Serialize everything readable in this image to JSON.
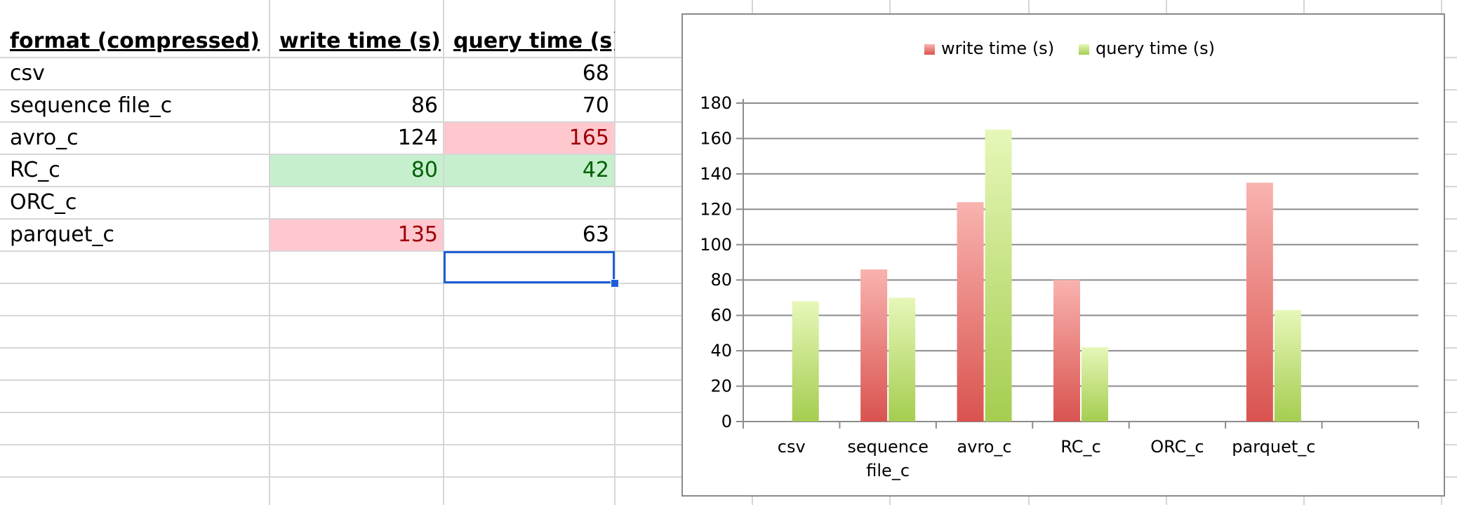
{
  "table": {
    "headers": [
      "format (compressed)",
      "write time (s)",
      "query time (s)"
    ],
    "rows": [
      {
        "format": "csv",
        "write": "",
        "query": "68"
      },
      {
        "format": "sequence file_c",
        "write": "86",
        "query": "70"
      },
      {
        "format": "avro_c",
        "write": "124",
        "query": "165"
      },
      {
        "format": "RC_c",
        "write": "80",
        "query": "42"
      },
      {
        "format": "ORC_c",
        "write": "",
        "query": ""
      },
      {
        "format": "parquet_c",
        "write": "135",
        "query": "63"
      }
    ],
    "colors": {
      "bad_fill": "#ffc7ce",
      "bad_text": "#9c0006",
      "good_fill": "#c6efce",
      "good_text": "#006100",
      "selection": "#1f5fd6"
    }
  },
  "chart_data": {
    "type": "bar",
    "categories": [
      "csv",
      "sequence file_c",
      "avro_c",
      "RC_c",
      "ORC_c",
      "parquet_c"
    ],
    "category_lines": [
      [
        "csv"
      ],
      [
        "sequence",
        "file_c"
      ],
      [
        "avro_c"
      ],
      [
        "RC_c"
      ],
      [
        "ORC_c"
      ],
      [
        "parquet_c"
      ]
    ],
    "series": [
      {
        "name": "write time (s)",
        "values": [
          null,
          86,
          124,
          80,
          null,
          135
        ],
        "color_top": "#f9b3af",
        "color_bottom": "#d9534f"
      },
      {
        "name": "query time (s)",
        "values": [
          68,
          70,
          165,
          42,
          null,
          63
        ],
        "color_top": "#e6f7b8",
        "color_bottom": "#a5cd50"
      }
    ],
    "y_ticks": [
      "0",
      "20",
      "40",
      "60",
      "80",
      "100",
      "120",
      "140",
      "160",
      "180"
    ],
    "ylim": [
      0,
      180
    ],
    "num_slots": 7,
    "grid": true,
    "legend_position": "top"
  }
}
